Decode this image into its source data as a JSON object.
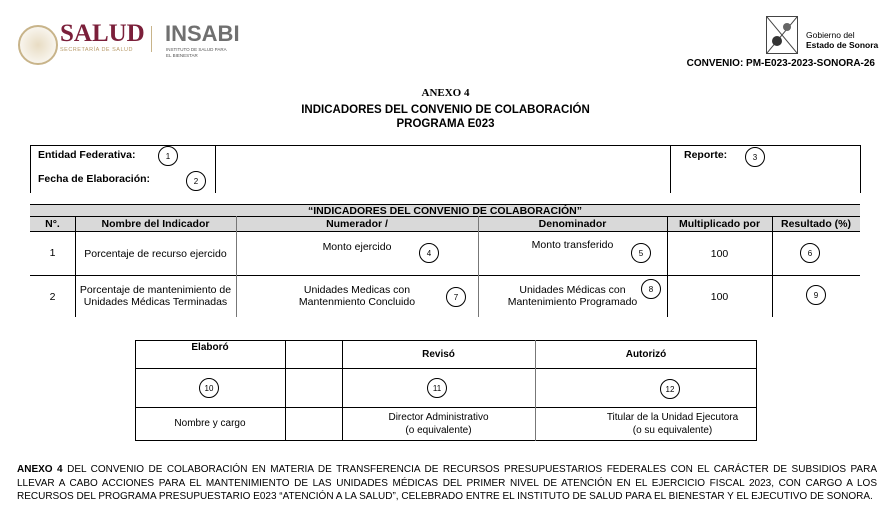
{
  "header": {
    "salud": "SALUD",
    "salud_sub": "SECRETARÍA DE SALUD",
    "insabi": "INSABI",
    "insabi_sub1": "INSTITUTO DE SALUD PARA",
    "insabi_sub2": "EL BIENESTAR",
    "gob1": "Gobierno del",
    "gob2": "Estado de Sonora",
    "convenio": "CONVENIO: PM-E023-2023-SONORA-26"
  },
  "title": {
    "anexo": "ANEXO 4",
    "line1": "INDICADORES DEL CONVENIO DE COLABORACIÓN",
    "line2": "PROGRAMA E023"
  },
  "info": {
    "entidad": "Entidad Federativa:",
    "fecha": "Fecha de Elaboración:",
    "reporte": "Reporte:",
    "m1": "1",
    "m2": "2",
    "m3": "3"
  },
  "indicators": {
    "title": "“INDICADORES DEL CONVENIO DE COLABORACIÓN”",
    "columns": [
      "N°.",
      "Nombre del Indicador",
      "Numerador /",
      "Denominador",
      "Multiplicado por",
      "Resultado (%)"
    ],
    "rows": [
      {
        "n": "1",
        "name1": "Porcentaje de recurso ejercido",
        "name2": "",
        "num1": "Monto ejercido",
        "num2": "",
        "num_m": "4",
        "den1": "Monto transferido",
        "den2": "",
        "den_m": "5",
        "mult": "100",
        "res_m": "6"
      },
      {
        "n": "2",
        "name1": "Porcentaje de mantenimiento de",
        "name2": "Unidades Médicas Terminadas",
        "num1": "Unidades Medicas con",
        "num2": "Mantenmiento Concluido",
        "num_m": "7",
        "den1": "Unidades Médicas con",
        "den2": "Mantenimiento Programado",
        "den_m": "8",
        "mult": "100",
        "res_m": "9"
      }
    ]
  },
  "signatures": {
    "elaboro": "Elaboró",
    "reviso": "Revisó",
    "autorizo": "Autorizó",
    "m10": "10",
    "m11": "11",
    "m12": "12",
    "elaboro_role": "Nombre y cargo",
    "reviso_role1": "Director Administrativo",
    "reviso_role2": "(o equivalente)",
    "autorizo_role1": "Titular de la Unidad Ejecutora",
    "autorizo_role2": "(o su equivalente)"
  },
  "footer": {
    "bold": "ANEXO 4",
    "text": " DEL CONVENIO DE COLABORACIÓN EN MATERIA DE TRANSFERENCIA DE RECURSOS PRESUPUESTARIOS FEDERALES CON EL CARÁCTER DE SUBSIDIOS PARA LLEVAR A CABO ACCIONES PARA EL MANTENIMIENTO DE LAS UNIDADES MÉDICAS DEL PRIMER NIVEL DE ATENCIÓN EN EL EJERCICIO FISCAL 2023, CON CARGO A LOS RECURSOS DEL PROGRAMA PRESUPUESTARIO E023 “ATENCIÓN A LA SALUD”, CELEBRADO ENTRE EL INSTITUTO DE SALUD PARA EL BIENESTAR Y EL EJECUTIVO DE SONORA."
  },
  "colors": {
    "salud": "#7b1f3a",
    "insabi": "#707070",
    "gold": "#b89b6a",
    "header_gray": "#d9d9d9"
  }
}
